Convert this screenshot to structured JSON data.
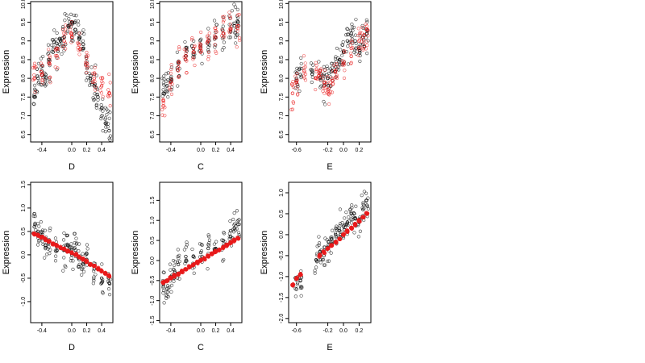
{
  "chart_data": [
    {
      "type": "scatter",
      "xlabel": "D",
      "ylabel": "Expression",
      "xlim": [
        -0.55,
        0.55
      ],
      "ylim": [
        6.3,
        10.05
      ],
      "xticks": [
        -0.4,
        0.0,
        0.2,
        0.4
      ],
      "xtick_labels": [
        "-0.4",
        "0.0",
        "0.2",
        "0.4"
      ],
      "yticks": [
        6.5,
        7.0,
        7.5,
        8.0,
        8.5,
        9.0,
        9.5,
        10.0
      ],
      "ytick_labels": [
        "6.5",
        "7.0",
        "7.5",
        "8.0",
        "8.5",
        "9.0",
        "9.5",
        "10.0"
      ],
      "grid": false,
      "series": [
        {
          "color": "#000000",
          "fill": "open",
          "x": [
            -0.5,
            -0.45,
            -0.4,
            -0.35,
            -0.3,
            -0.25,
            -0.2,
            -0.15,
            -0.1,
            -0.05,
            0.0,
            0.05,
            0.1,
            0.15,
            0.2,
            0.25,
            0.3,
            0.35,
            0.4,
            0.45,
            0.5
          ],
          "y": [
            7.5,
            8.0,
            8.2,
            8.1,
            8.5,
            8.7,
            8.8,
            9.0,
            9.1,
            9.4,
            9.5,
            9.3,
            9.1,
            8.8,
            8.4,
            8.0,
            7.8,
            7.5,
            7.2,
            6.8,
            6.6
          ]
        },
        {
          "color": "#e8191a",
          "fill": "open",
          "x": [
            -0.5,
            -0.4,
            -0.3,
            -0.2,
            -0.1,
            0.0,
            0.1,
            0.2,
            0.3,
            0.4,
            0.5
          ],
          "y": [
            8.0,
            8.1,
            8.4,
            8.6,
            9.0,
            9.1,
            8.9,
            8.4,
            8.0,
            7.8,
            7.6
          ]
        }
      ]
    },
    {
      "type": "scatter",
      "xlabel": "C",
      "ylabel": "Expression",
      "xlim": [
        -0.55,
        0.55
      ],
      "ylim": [
        6.3,
        10.05
      ],
      "xticks": [
        -0.4,
        0.0,
        0.2,
        0.4
      ],
      "xtick_labels": [
        "-0.4",
        "0.0",
        "0.2",
        "0.4"
      ],
      "yticks": [
        6.5,
        7.0,
        7.5,
        8.0,
        8.5,
        9.0,
        9.5,
        10.0
      ],
      "ytick_labels": [
        "6.5",
        "7.0",
        "7.5",
        "8.0",
        "8.5",
        "9.0",
        "9.5",
        "10.0"
      ],
      "grid": false,
      "series": [
        {
          "color": "#000000",
          "fill": "open",
          "x": [
            -0.5,
            -0.45,
            -0.4,
            -0.3,
            -0.2,
            -0.1,
            0.0,
            0.1,
            0.2,
            0.3,
            0.4,
            0.45,
            0.5
          ],
          "y": [
            7.6,
            7.8,
            8.0,
            8.4,
            8.6,
            8.8,
            8.9,
            9.0,
            9.1,
            9.2,
            9.3,
            9.4,
            9.5
          ]
        },
        {
          "color": "#e8191a",
          "fill": "open",
          "x": [
            -0.5,
            -0.4,
            -0.3,
            -0.2,
            -0.1,
            0.0,
            0.1,
            0.2,
            0.3,
            0.4,
            0.5
          ],
          "y": [
            7.4,
            7.9,
            8.3,
            8.5,
            8.7,
            8.8,
            9.0,
            9.1,
            9.2,
            9.3,
            9.4
          ]
        }
      ]
    },
    {
      "type": "scatter",
      "xlabel": "E",
      "ylabel": "Expression",
      "xlim": [
        -0.7,
        0.35
      ],
      "ylim": [
        6.3,
        10.05
      ],
      "xticks": [
        -0.6,
        -0.2,
        0.0,
        0.2
      ],
      "xtick_labels": [
        "-0.6",
        "-0.2",
        "0.0",
        "0.2"
      ],
      "yticks": [
        6.5,
        7.0,
        7.5,
        8.0,
        8.5,
        9.0,
        9.5,
        10.0
      ],
      "ytick_labels": [
        "6.5",
        "7.0",
        "7.5",
        "8.0",
        "8.5",
        "9.0",
        "9.5",
        "10.0"
      ],
      "grid": false,
      "series": [
        {
          "color": "#000000",
          "fill": "open",
          "x": [
            -0.6,
            -0.55,
            -0.4,
            -0.3,
            -0.25,
            -0.2,
            -0.15,
            -0.1,
            -0.05,
            0.0,
            0.05,
            0.1,
            0.15,
            0.2,
            0.25,
            0.3
          ],
          "y": [
            8.0,
            8.1,
            8.2,
            8.0,
            7.8,
            8.0,
            8.2,
            8.3,
            8.5,
            8.7,
            9.0,
            9.2,
            9.0,
            8.8,
            9.1,
            9.2
          ]
        },
        {
          "color": "#e8191a",
          "fill": "open",
          "x": [
            -0.65,
            -0.6,
            -0.5,
            -0.35,
            -0.3,
            -0.25,
            -0.2,
            -0.15,
            -0.1,
            0.0,
            0.1,
            0.2,
            0.25,
            0.3
          ],
          "y": [
            7.6,
            7.9,
            8.2,
            8.0,
            8.2,
            7.9,
            7.7,
            8.0,
            8.2,
            8.4,
            8.8,
            9.0,
            9.1,
            9.3
          ]
        }
      ]
    },
    {
      "type": "scatter",
      "xlabel": "D",
      "ylabel": "Expression",
      "xlim": [
        -0.55,
        0.55
      ],
      "ylim": [
        -1.45,
        1.55
      ],
      "xticks": [
        -0.4,
        0.0,
        0.2,
        0.4
      ],
      "xtick_labels": [
        "-0.4",
        "0.0",
        "0.2",
        "0.4"
      ],
      "yticks": [
        -1.0,
        -0.5,
        0.0,
        0.5,
        1.0,
        1.5
      ],
      "ytick_labels": [
        "-1.0",
        "-0.5",
        "0.0",
        "0.5",
        "1.0",
        "1.5"
      ],
      "grid": false,
      "series": [
        {
          "color": "#000000",
          "fill": "open",
          "x": [
            -0.5,
            -0.45,
            -0.4,
            -0.35,
            -0.3,
            -0.2,
            -0.1,
            -0.05,
            0.0,
            0.05,
            0.1,
            0.15,
            0.2,
            0.3,
            0.4,
            0.5
          ],
          "y": [
            0.6,
            0.5,
            0.4,
            0.2,
            0.3,
            0.1,
            0.1,
            0.2,
            0.0,
            0.1,
            -0.1,
            -0.2,
            -0.1,
            -0.3,
            -0.5,
            -0.6
          ]
        },
        {
          "color": "#e8191a",
          "fill": "filled",
          "x": [
            -0.5,
            -0.45,
            -0.4,
            -0.35,
            -0.3,
            -0.25,
            -0.2,
            -0.15,
            -0.1,
            -0.05,
            0.0,
            0.05,
            0.1,
            0.15,
            0.2,
            0.25,
            0.3,
            0.35,
            0.4,
            0.45,
            0.5
          ],
          "y": [
            0.45,
            0.42,
            0.38,
            0.33,
            0.29,
            0.24,
            0.2,
            0.15,
            0.12,
            0.08,
            0.04,
            0.0,
            -0.05,
            -0.1,
            -0.14,
            -0.2,
            -0.24,
            -0.3,
            -0.35,
            -0.4,
            -0.45
          ]
        }
      ]
    },
    {
      "type": "scatter",
      "xlabel": "C",
      "ylabel": "Expression",
      "xlim": [
        -0.55,
        0.55
      ],
      "ylim": [
        -1.55,
        1.95
      ],
      "xticks": [
        -0.4,
        0.0,
        0.2,
        0.4
      ],
      "xtick_labels": [
        "-0.4",
        "0.0",
        "0.2",
        "0.4"
      ],
      "yticks": [
        -1.5,
        -1.0,
        -0.5,
        0.0,
        0.5,
        1.0,
        1.5
      ],
      "ytick_labels": [
        "-1.5",
        "-1.0",
        "-0.5",
        "0.0",
        "0.5",
        "1.0",
        "1.5"
      ],
      "grid": false,
      "series": [
        {
          "color": "#000000",
          "fill": "open",
          "x": [
            -0.5,
            -0.45,
            -0.4,
            -0.35,
            -0.3,
            -0.2,
            -0.1,
            0.0,
            0.1,
            0.2,
            0.3,
            0.4,
            0.45,
            0.5
          ],
          "y": [
            -0.6,
            -0.7,
            -0.4,
            -0.3,
            -0.1,
            0.1,
            0.1,
            0.2,
            0.3,
            0.3,
            0.5,
            0.6,
            0.8,
            0.9
          ]
        },
        {
          "color": "#e8191a",
          "fill": "filled",
          "x": [
            -0.5,
            -0.45,
            -0.4,
            -0.35,
            -0.3,
            -0.25,
            -0.2,
            -0.15,
            -0.1,
            -0.05,
            0.0,
            0.05,
            0.1,
            0.15,
            0.2,
            0.25,
            0.3,
            0.35,
            0.4,
            0.45,
            0.5
          ],
          "y": [
            -0.55,
            -0.5,
            -0.44,
            -0.38,
            -0.33,
            -0.27,
            -0.22,
            -0.16,
            -0.11,
            -0.05,
            0.0,
            0.05,
            0.11,
            0.16,
            0.22,
            0.27,
            0.33,
            0.38,
            0.44,
            0.5,
            0.55
          ]
        }
      ]
    },
    {
      "type": "scatter",
      "xlabel": "E",
      "ylabel": "Expression",
      "xlim": [
        -0.7,
        0.35
      ],
      "ylim": [
        -2.1,
        1.25
      ],
      "xticks": [
        -0.6,
        -0.2,
        0.0,
        0.2
      ],
      "xtick_labels": [
        "-0.6",
        "-0.2",
        "0.0",
        "0.2"
      ],
      "yticks": [
        -2.0,
        -1.5,
        -1.0,
        -0.5,
        0.0,
        0.5,
        1.0
      ],
      "ytick_labels": [
        "-2.0",
        "-1.5",
        "-1.0",
        "-0.5",
        "0.0",
        "0.5",
        "1.0"
      ],
      "grid": false,
      "series": [
        {
          "color": "#000000",
          "fill": "open",
          "x": [
            -0.6,
            -0.55,
            -0.35,
            -0.3,
            -0.25,
            -0.2,
            -0.15,
            -0.1,
            -0.05,
            0.0,
            0.05,
            0.1,
            0.15,
            0.2,
            0.25,
            0.3
          ],
          "y": [
            -1.3,
            -1.1,
            -0.6,
            -0.4,
            -0.5,
            -0.3,
            -0.1,
            0.0,
            0.1,
            0.2,
            0.3,
            0.5,
            0.4,
            0.3,
            0.6,
            0.7
          ]
        },
        {
          "color": "#e8191a",
          "fill": "filled",
          "x": [
            -0.65,
            -0.6,
            -0.55,
            -0.3,
            -0.25,
            -0.2,
            -0.15,
            -0.1,
            -0.05,
            0.0,
            0.05,
            0.1,
            0.15,
            0.2,
            0.25,
            0.3
          ],
          "y": [
            -1.2,
            -1.05,
            -0.95,
            -0.5,
            -0.42,
            -0.33,
            -0.26,
            -0.18,
            -0.1,
            0.0,
            0.08,
            0.16,
            0.24,
            0.33,
            0.42,
            0.5
          ]
        }
      ]
    }
  ]
}
